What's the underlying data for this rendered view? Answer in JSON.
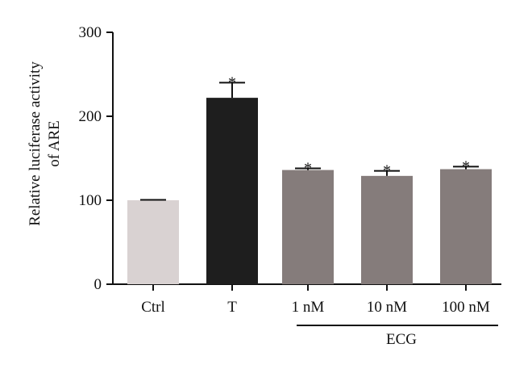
{
  "chart_data": {
    "type": "bar",
    "categories": [
      "Ctrl",
      "T",
      "1 nM",
      "10 nM",
      "100 nM"
    ],
    "values": [
      100,
      222,
      136,
      129,
      137
    ],
    "errors": [
      0.5,
      18,
      2,
      6,
      3
    ],
    "significance": [
      "",
      "*",
      "*",
      "*",
      "*"
    ],
    "bar_colors": [
      "#d9d2d2",
      "#1e1e1e",
      "#857c7b",
      "#857c7b",
      "#857c7b"
    ],
    "ylabel_lines": [
      "Relative luciferase activity",
      "of ARE"
    ],
    "yticks": [
      0,
      100,
      200,
      300
    ],
    "ylim": [
      0,
      300
    ],
    "group_label": "ECG",
    "group_categories": [
      "1 nM",
      "10 nM",
      "100 nM"
    ],
    "grid": false
  }
}
